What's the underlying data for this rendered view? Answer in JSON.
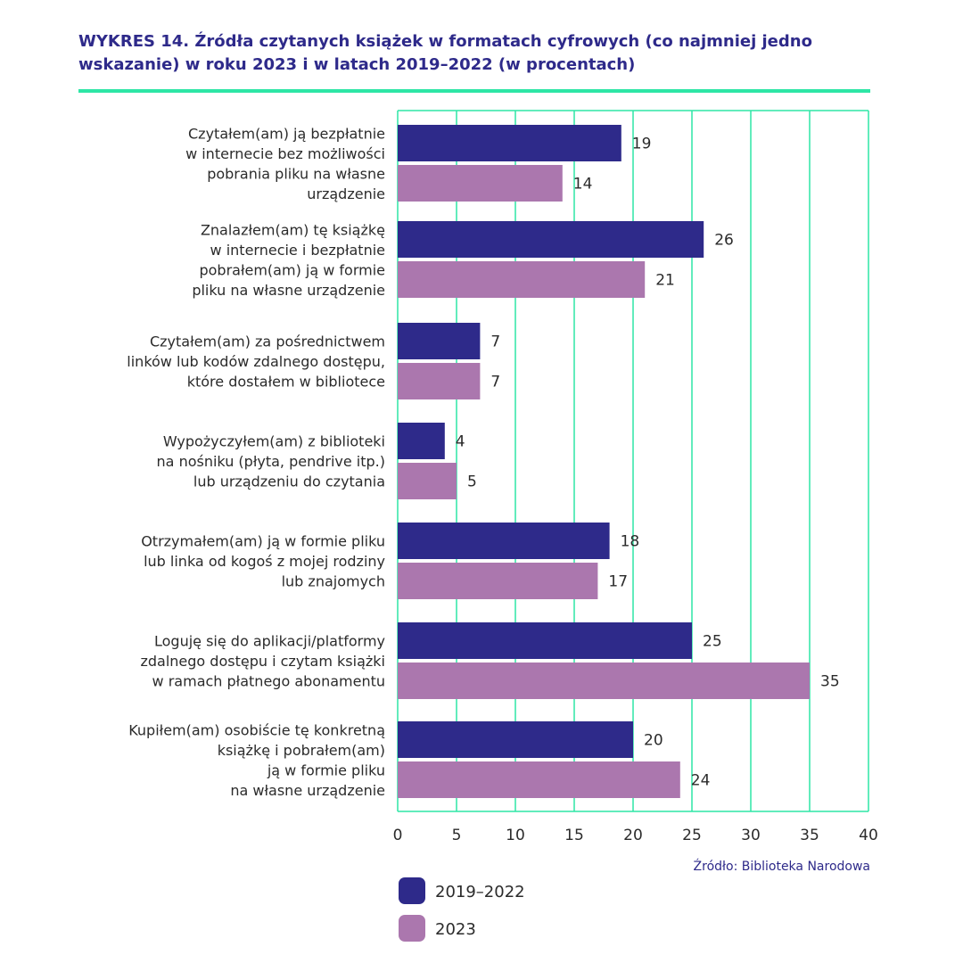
{
  "chart_data": {
    "type": "bar",
    "orientation": "horizontal",
    "title": "WYKRES 14.  Źródła czytanych książek w formatach cyfrowych (co najmniej jedno wskazanie) w roku 2023 i w latach 2019–2022 (w procentach)",
    "categories": [
      [
        "Czytałem(am) ją bezpłatnie",
        "w internecie bez możliwości",
        "pobrania pliku na własne",
        "urządzenie"
      ],
      [
        "Znalazłem(am) tę książkę",
        "w internecie i bezpłatnie",
        "pobrałem(am) ją w formie",
        "pliku na własne urządzenie"
      ],
      [
        "Czytałem(am) za pośrednictwem",
        "linków lub kodów zdalnego dostępu,",
        "które dostałem w bibliotece"
      ],
      [
        "Wypożyczyłem(am) z biblioteki",
        "na nośniku (płyta, pendrive itp.)",
        "lub urządzeniu do czytania"
      ],
      [
        "Otrzymałem(am) ją w formie pliku",
        "lub linka od kogoś z mojej rodziny",
        "lub znajomych"
      ],
      [
        "Loguję się do aplikacji/platformy",
        "zdalnego dostępu i czytam książki",
        "w ramach płatnego abonamentu"
      ],
      [
        "Kupiłem(am) osobiście tę konkretną",
        "książkę i pobrałem(am)",
        "ją w formie pliku",
        "na własne urządzenie"
      ]
    ],
    "series": [
      {
        "name": "2019–2022",
        "color": "#2e2a8a",
        "values": [
          19,
          26,
          7,
          4,
          18,
          25,
          20
        ]
      },
      {
        "name": "2023",
        "color": "#ab77ae",
        "values": [
          14,
          21,
          7,
          5,
          17,
          35,
          24
        ]
      }
    ],
    "xlim": [
      0,
      40
    ],
    "xticks": [
      "0",
      "5",
      "10",
      "15",
      "20",
      "25",
      "30",
      "35",
      "40"
    ],
    "grid": true,
    "grid_color": "#2ee6a6",
    "legend_position": "bottom-left",
    "source": "Źródło: Biblioteka Narodowa"
  }
}
